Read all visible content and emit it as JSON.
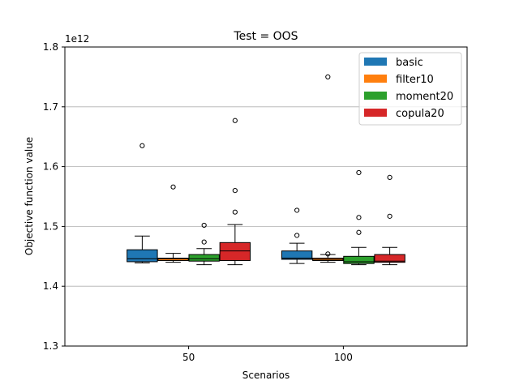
{
  "chart_data": {
    "type": "box",
    "title": "Test = OOS",
    "xlabel": "Scenarios",
    "ylabel": "Objective function value",
    "y_offset_label": "1e12",
    "categories": [
      "50",
      "100"
    ],
    "ylim": [
      1.3,
      1.8
    ],
    "yticks": [
      "1.3",
      "1.4",
      "1.5",
      "1.6",
      "1.7",
      "1.8"
    ],
    "grid": "y",
    "legend_position": "top-right",
    "series": [
      {
        "name": "basic",
        "color": "#1f77b4",
        "boxes": [
          {
            "category": "50",
            "whislo": 1.439,
            "q1": 1.441,
            "med": 1.446,
            "q3": 1.461,
            "whishi": 1.484,
            "fliers": [
              1.635
            ]
          },
          {
            "category": "100",
            "whislo": 1.438,
            "q1": 1.445,
            "med": 1.447,
            "q3": 1.459,
            "whishi": 1.472,
            "fliers": [
              1.527,
              1.485
            ]
          }
        ]
      },
      {
        "name": "filter10",
        "color": "#ff7f0e",
        "boxes": [
          {
            "category": "50",
            "whislo": 1.44,
            "q1": 1.443,
            "med": 1.446,
            "q3": 1.447,
            "whishi": 1.455,
            "fliers": [
              1.566
            ]
          },
          {
            "category": "100",
            "whislo": 1.44,
            "q1": 1.443,
            "med": 1.445,
            "q3": 1.447,
            "whishi": 1.453,
            "fliers": [
              1.75,
              1.454
            ]
          }
        ]
      },
      {
        "name": "moment20",
        "color": "#2ca02c",
        "boxes": [
          {
            "category": "50",
            "whislo": 1.436,
            "q1": 1.442,
            "med": 1.446,
            "q3": 1.453,
            "whishi": 1.463,
            "fliers": [
              1.502,
              1.474
            ]
          },
          {
            "category": "100",
            "whislo": 1.436,
            "q1": 1.438,
            "med": 1.441,
            "q3": 1.45,
            "whishi": 1.465,
            "fliers": [
              1.59,
              1.515,
              1.49
            ]
          }
        ]
      },
      {
        "name": "copula20",
        "color": "#d62728",
        "boxes": [
          {
            "category": "50",
            "whislo": 1.436,
            "q1": 1.443,
            "med": 1.459,
            "q3": 1.473,
            "whishi": 1.503,
            "fliers": [
              1.677,
              1.56,
              1.524
            ]
          },
          {
            "category": "100",
            "whislo": 1.436,
            "q1": 1.44,
            "med": 1.442,
            "q3": 1.453,
            "whishi": 1.465,
            "fliers": [
              1.582,
              1.517
            ]
          }
        ]
      }
    ]
  }
}
